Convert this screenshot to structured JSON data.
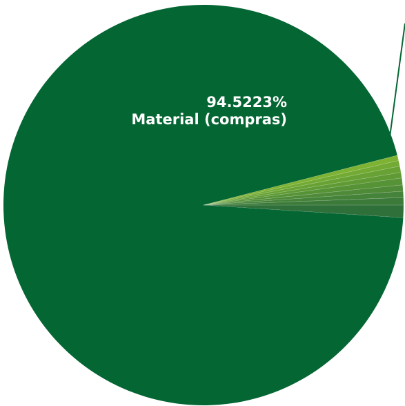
{
  "chart_data": {
    "type": "pie",
    "title": "",
    "slices": [
      {
        "label": "Material (compras)",
        "value": 94.5223,
        "value_label": "94.5223%",
        "color": "#046633"
      },
      {
        "label": "",
        "value": 1.0,
        "color": "#2f6f3a"
      },
      {
        "label": "",
        "value": 0.6,
        "color": "#3c7a3a"
      },
      {
        "label": "",
        "value": 0.5,
        "color": "#45823a"
      },
      {
        "label": "",
        "value": 0.5,
        "color": "#4e8a38"
      },
      {
        "label": "",
        "value": 0.55,
        "color": "#569236"
      },
      {
        "label": "",
        "value": 0.45,
        "color": "#5f9a35"
      },
      {
        "label": "",
        "value": 0.5,
        "color": "#68a234"
      },
      {
        "label": "",
        "value": 0.45,
        "color": "#72aa33"
      },
      {
        "label": "",
        "value": 0.4277,
        "color": "#7eb233"
      }
    ],
    "legend": "none"
  }
}
